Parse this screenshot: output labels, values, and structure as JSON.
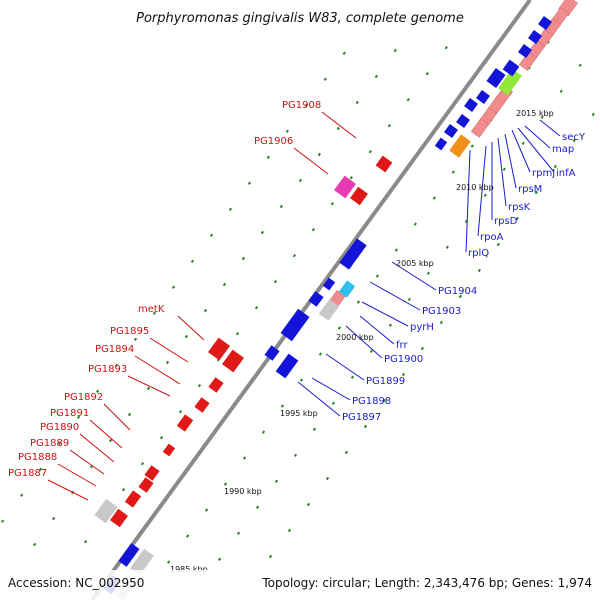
{
  "title": "Porphyromonas gingivalis W83, complete genome",
  "footer": {
    "accession": "Accession: NC_002950",
    "topology": "Topology: circular; Length: 2,343,476 bp; Genes: 1,974"
  },
  "colors": {
    "forward_gene": "#1414d8",
    "reverse_gene": "#e01818",
    "feature_pink": "#f08c8c",
    "feature_gray": "#c8c8c8",
    "feature_cyan": "#30c0f0",
    "feature_green": "#90e838",
    "feature_orange": "#f09018",
    "feature_magenta": "#e83ab0",
    "axis": "#888888",
    "tick": "#228822"
  },
  "scale_labels": [
    "1985 kbp",
    "1990 kbp",
    "1995 kbp",
    "2000 kbp",
    "2005 kbp",
    "2010 kbp",
    "2015 kbp"
  ],
  "forward_labels": [
    "secY",
    "map",
    "infA",
    "rpmJ",
    "rpsM",
    "rpsK",
    "rpsD",
    "rpoA",
    "rplQ",
    "PG1904",
    "PG1903",
    "pyrH",
    "frr",
    "PG1900",
    "PG1899",
    "PG1898",
    "PG1897"
  ],
  "reverse_labels": [
    "PG1908",
    "PG1906",
    "metK",
    "PG1895",
    "PG1894",
    "PG1893",
    "PG1892",
    "PG1891",
    "PG1890",
    "PG1889",
    "PG1888",
    "PG1887"
  ]
}
